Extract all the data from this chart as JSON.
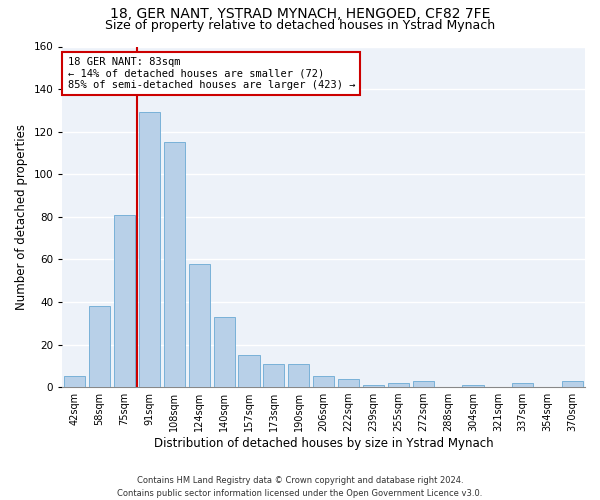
{
  "title": "18, GER NANT, YSTRAD MYNACH, HENGOED, CF82 7FE",
  "subtitle": "Size of property relative to detached houses in Ystrad Mynach",
  "xlabel": "Distribution of detached houses by size in Ystrad Mynach",
  "ylabel": "Number of detached properties",
  "categories": [
    "42sqm",
    "58sqm",
    "75sqm",
    "91sqm",
    "108sqm",
    "124sqm",
    "140sqm",
    "157sqm",
    "173sqm",
    "190sqm",
    "206sqm",
    "222sqm",
    "239sqm",
    "255sqm",
    "272sqm",
    "288sqm",
    "304sqm",
    "321sqm",
    "337sqm",
    "354sqm",
    "370sqm"
  ],
  "values": [
    5,
    38,
    81,
    129,
    115,
    58,
    33,
    15,
    11,
    11,
    5,
    4,
    1,
    2,
    3,
    0,
    1,
    0,
    2,
    0,
    3
  ],
  "bar_color": "#b8d0e8",
  "bar_edge_color": "#6aaad4",
  "ylim": [
    0,
    160
  ],
  "yticks": [
    0,
    20,
    40,
    60,
    80,
    100,
    120,
    140,
    160
  ],
  "vline_color": "#cc0000",
  "annotation_text": "18 GER NANT: 83sqm\n← 14% of detached houses are smaller (72)\n85% of semi-detached houses are larger (423) →",
  "annotation_box_color": "#cc0000",
  "footer_line1": "Contains HM Land Registry data © Crown copyright and database right 2024.",
  "footer_line2": "Contains public sector information licensed under the Open Government Licence v3.0.",
  "bg_color": "#edf2f9",
  "grid_color": "#ffffff",
  "title_fontsize": 10,
  "subtitle_fontsize": 9,
  "tick_fontsize": 7,
  "ylabel_fontsize": 8.5,
  "xlabel_fontsize": 8.5,
  "footer_fontsize": 6
}
